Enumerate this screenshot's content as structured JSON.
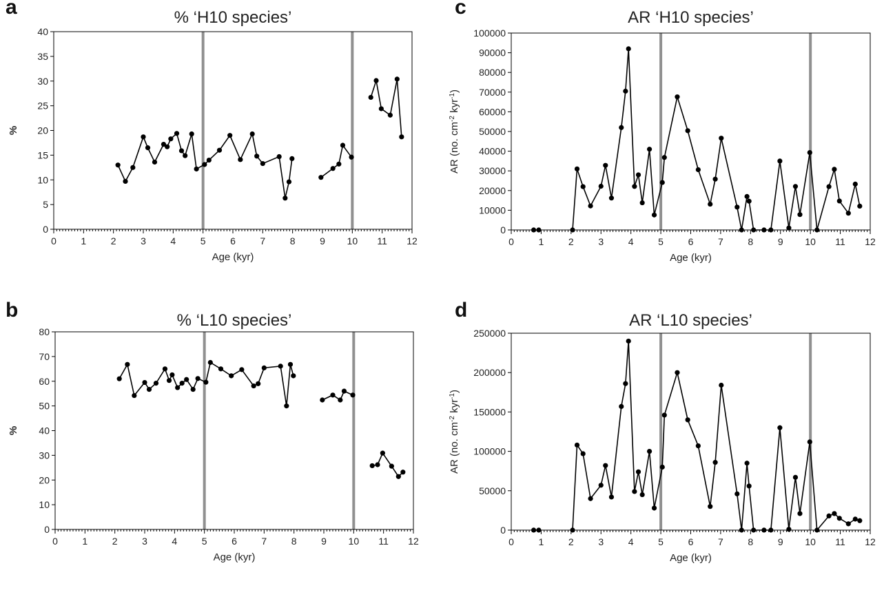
{
  "colors": {
    "series": "#000000",
    "marker_line": "#909090",
    "axis": "#000000"
  },
  "chart_data": [
    {
      "panel": "a",
      "type": "line",
      "title": "% ‘H10 species’",
      "xlabel": "Age (kyr)",
      "ylabel": "%",
      "xlim": [
        0,
        12
      ],
      "ylim": [
        0,
        40
      ],
      "xticks": [
        0,
        1,
        2,
        3,
        4,
        5,
        6,
        7,
        8,
        9,
        10,
        11,
        12
      ],
      "yticks": [
        0,
        5,
        10,
        15,
        20,
        25,
        30,
        35,
        40
      ],
      "vlines": [
        5,
        10
      ],
      "grid": false,
      "segments": [
        {
          "x": [
            2.15,
            2.4,
            2.65,
            3.0,
            3.15,
            3.38,
            3.68,
            3.8,
            3.92,
            4.12,
            4.28,
            4.4,
            4.62,
            4.78,
            5.05,
            5.2,
            5.55,
            5.9,
            6.25,
            6.65,
            6.8,
            7.0,
            7.55,
            7.75,
            7.88,
            7.98
          ],
          "y": [
            13,
            9.7,
            12.5,
            18.7,
            16.5,
            13.6,
            17.2,
            16.7,
            18.3,
            19.4,
            15.9,
            14.9,
            19.3,
            12.2,
            13.1,
            14.0,
            16.0,
            19.0,
            14.1,
            19.3,
            14.8,
            13.3,
            14.7,
            6.3,
            9.6,
            14.3
          ]
        },
        {
          "x": [
            8.95,
            9.35,
            9.55,
            9.68,
            9.97
          ],
          "y": [
            10.5,
            12.3,
            13.2,
            17.0,
            14.6
          ]
        },
        {
          "x": [
            10.62,
            10.8,
            10.97,
            11.27,
            11.5,
            11.65
          ],
          "y": [
            26.7,
            30.1,
            24.4,
            23.1,
            30.4,
            18.7
          ]
        }
      ]
    },
    {
      "panel": "b",
      "type": "line",
      "title": "% ‘L10 species’",
      "xlabel": "Age (kyr)",
      "ylabel": "%",
      "xlim": [
        0,
        12
      ],
      "ylim": [
        0,
        80
      ],
      "xticks": [
        0,
        1,
        2,
        3,
        4,
        5,
        6,
        7,
        8,
        9,
        10,
        11,
        12
      ],
      "yticks": [
        0,
        10,
        20,
        30,
        40,
        50,
        60,
        70,
        80
      ],
      "vlines": [
        5,
        10
      ],
      "grid": false,
      "segments": [
        {
          "x": [
            2.15,
            2.42,
            2.65,
            3.0,
            3.15,
            3.38,
            3.68,
            3.82,
            3.92,
            4.1,
            4.25,
            4.4,
            4.62,
            4.78,
            5.05,
            5.2,
            5.55,
            5.9,
            6.25,
            6.65,
            6.8,
            7.0,
            7.55,
            7.75,
            7.88,
            7.98
          ],
          "y": [
            61,
            66.8,
            54.2,
            59.5,
            56.7,
            59.2,
            65.0,
            60.3,
            62.6,
            57.4,
            59.2,
            60.7,
            56.7,
            61.1,
            59.6,
            67.6,
            65.0,
            62.2,
            64.7,
            58.1,
            59.0,
            65.4,
            66.1,
            50.0,
            66.8,
            62.2
          ]
        },
        {
          "x": [
            8.95,
            9.3,
            9.55,
            9.68,
            9.97
          ],
          "y": [
            52.4,
            54.4,
            52.4,
            56.0,
            54.4
          ]
        },
        {
          "x": [
            10.62,
            10.8,
            10.97,
            11.27,
            11.5,
            11.65
          ],
          "y": [
            25.8,
            26.2,
            30.9,
            25.6,
            21.4,
            23.2
          ]
        }
      ]
    },
    {
      "panel": "c",
      "type": "line",
      "title": "AR ‘H10 species’",
      "xlabel": "Age (kyr)",
      "ylabel_main": "AR (no. cm",
      "ylabel_sup1": "-2",
      "ylabel_mid": " kyr",
      "ylabel_sup2": "-1",
      "ylabel_end": ")",
      "xlim": [
        0,
        12
      ],
      "ylim": [
        0,
        100000
      ],
      "xticks": [
        0,
        1,
        2,
        3,
        4,
        5,
        6,
        7,
        8,
        9,
        10,
        11,
        12
      ],
      "yticks": [
        0,
        10000,
        20000,
        30000,
        40000,
        50000,
        60000,
        70000,
        80000,
        90000,
        100000
      ],
      "vlines": [
        5,
        10
      ],
      "grid": false,
      "segments": [
        {
          "x": [
            0.75,
            0.92
          ],
          "y": [
            0,
            0
          ]
        },
        {
          "x": [
            2.05,
            2.2,
            2.4,
            2.65,
            3.0,
            3.15,
            3.35,
            3.68,
            3.82,
            3.92,
            4.12,
            4.25,
            4.38,
            4.62,
            4.78,
            5.05,
            5.12,
            5.55,
            5.9,
            6.25,
            6.65,
            6.82,
            7.02,
            7.55,
            7.7,
            7.88,
            7.95,
            8.1,
            8.45,
            8.68,
            8.98,
            9.28,
            9.5,
            9.65,
            9.98,
            10.22,
            10.62,
            10.8,
            10.97,
            11.27,
            11.5,
            11.65
          ],
          "y": [
            0,
            31000,
            22000,
            12200,
            22200,
            32800,
            16200,
            52000,
            70500,
            92000,
            22100,
            28000,
            13800,
            41000,
            7600,
            24100,
            36800,
            67600,
            50400,
            30600,
            13100,
            25800,
            46600,
            11600,
            0,
            17000,
            14600,
            0,
            0,
            0,
            35000,
            1000,
            22100,
            7800,
            39300,
            0,
            22000,
            30800,
            14700,
            8500,
            23300,
            12100
          ]
        }
      ]
    },
    {
      "panel": "d",
      "type": "line",
      "title": "AR ‘L10 species’",
      "xlabel": "Age (kyr)",
      "ylabel_main": "AR (no. cm",
      "ylabel_sup1": "-2",
      "ylabel_mid": " kyr",
      "ylabel_sup2": "-1",
      "ylabel_end": ")",
      "xlim": [
        0,
        12
      ],
      "ylim": [
        0,
        250000
      ],
      "xticks": [
        0,
        1,
        2,
        3,
        4,
        5,
        6,
        7,
        8,
        9,
        10,
        11,
        12
      ],
      "yticks": [
        0,
        50000,
        100000,
        150000,
        200000,
        250000
      ],
      "vlines": [
        5,
        10
      ],
      "grid": false,
      "segments": [
        {
          "x": [
            0.75,
            0.92
          ],
          "y": [
            0,
            0
          ]
        },
        {
          "x": [
            2.05,
            2.2,
            2.4,
            2.65,
            3.0,
            3.15,
            3.35,
            3.68,
            3.82,
            3.92,
            4.12,
            4.25,
            4.38,
            4.62,
            4.78,
            5.05,
            5.12,
            5.55,
            5.9,
            6.25,
            6.65,
            6.82,
            7.02,
            7.55,
            7.7,
            7.88,
            7.95,
            8.1,
            8.45,
            8.68,
            8.98,
            9.28,
            9.5,
            9.65,
            9.98,
            10.22,
            10.62,
            10.8,
            10.97,
            11.27,
            11.5,
            11.65
          ],
          "y": [
            0,
            108000,
            97000,
            40000,
            57000,
            82000,
            42000,
            157000,
            186000,
            240000,
            49000,
            74000,
            45000,
            100000,
            28000,
            80000,
            146000,
            200000,
            140000,
            107000,
            30000,
            86000,
            184000,
            46000,
            0,
            85000,
            56000,
            0,
            0,
            0,
            130000,
            1000,
            67000,
            21000,
            112000,
            0,
            18000,
            21000,
            15000,
            8000,
            14000,
            12000
          ]
        }
      ]
    }
  ]
}
